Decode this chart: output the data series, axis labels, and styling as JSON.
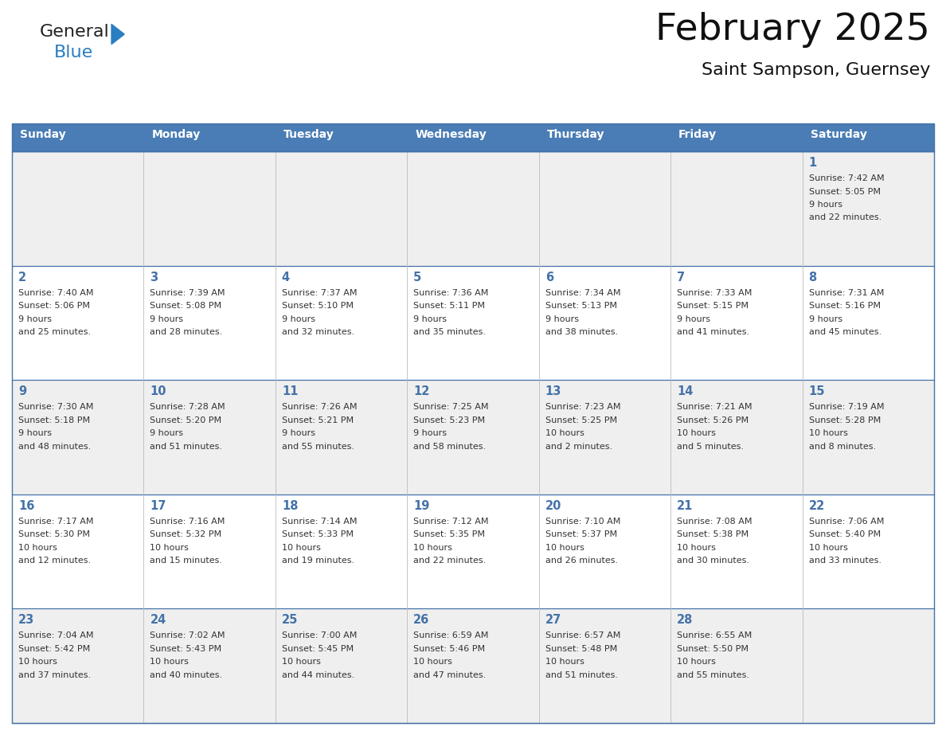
{
  "title": "February 2025",
  "subtitle": "Saint Sampson, Guernsey",
  "header_bg": "#4a7db5",
  "header_text_color": "#ffffff",
  "cell_bg_even": "#efefef",
  "cell_bg_odd": "#ffffff",
  "border_color": "#4472a8",
  "text_color": "#333333",
  "day_number_color": "#4472a8",
  "logo_general_color": "#222222",
  "logo_blue_color": "#2b7ec1",
  "day_headers": [
    "Sunday",
    "Monday",
    "Tuesday",
    "Wednesday",
    "Thursday",
    "Friday",
    "Saturday"
  ],
  "days": [
    {
      "day": 1,
      "col": 6,
      "row": 0,
      "sunrise": "7:42 AM",
      "sunset": "5:05 PM",
      "daylight": "9 hours and 22 minutes."
    },
    {
      "day": 2,
      "col": 0,
      "row": 1,
      "sunrise": "7:40 AM",
      "sunset": "5:06 PM",
      "daylight": "9 hours and 25 minutes."
    },
    {
      "day": 3,
      "col": 1,
      "row": 1,
      "sunrise": "7:39 AM",
      "sunset": "5:08 PM",
      "daylight": "9 hours and 28 minutes."
    },
    {
      "day": 4,
      "col": 2,
      "row": 1,
      "sunrise": "7:37 AM",
      "sunset": "5:10 PM",
      "daylight": "9 hours and 32 minutes."
    },
    {
      "day": 5,
      "col": 3,
      "row": 1,
      "sunrise": "7:36 AM",
      "sunset": "5:11 PM",
      "daylight": "9 hours and 35 minutes."
    },
    {
      "day": 6,
      "col": 4,
      "row": 1,
      "sunrise": "7:34 AM",
      "sunset": "5:13 PM",
      "daylight": "9 hours and 38 minutes."
    },
    {
      "day": 7,
      "col": 5,
      "row": 1,
      "sunrise": "7:33 AM",
      "sunset": "5:15 PM",
      "daylight": "9 hours and 41 minutes."
    },
    {
      "day": 8,
      "col": 6,
      "row": 1,
      "sunrise": "7:31 AM",
      "sunset": "5:16 PM",
      "daylight": "9 hours and 45 minutes."
    },
    {
      "day": 9,
      "col": 0,
      "row": 2,
      "sunrise": "7:30 AM",
      "sunset": "5:18 PM",
      "daylight": "9 hours and 48 minutes."
    },
    {
      "day": 10,
      "col": 1,
      "row": 2,
      "sunrise": "7:28 AM",
      "sunset": "5:20 PM",
      "daylight": "9 hours and 51 minutes."
    },
    {
      "day": 11,
      "col": 2,
      "row": 2,
      "sunrise": "7:26 AM",
      "sunset": "5:21 PM",
      "daylight": "9 hours and 55 minutes."
    },
    {
      "day": 12,
      "col": 3,
      "row": 2,
      "sunrise": "7:25 AM",
      "sunset": "5:23 PM",
      "daylight": "9 hours and 58 minutes."
    },
    {
      "day": 13,
      "col": 4,
      "row": 2,
      "sunrise": "7:23 AM",
      "sunset": "5:25 PM",
      "daylight": "10 hours and 2 minutes."
    },
    {
      "day": 14,
      "col": 5,
      "row": 2,
      "sunrise": "7:21 AM",
      "sunset": "5:26 PM",
      "daylight": "10 hours and 5 minutes."
    },
    {
      "day": 15,
      "col": 6,
      "row": 2,
      "sunrise": "7:19 AM",
      "sunset": "5:28 PM",
      "daylight": "10 hours and 8 minutes."
    },
    {
      "day": 16,
      "col": 0,
      "row": 3,
      "sunrise": "7:17 AM",
      "sunset": "5:30 PM",
      "daylight": "10 hours and 12 minutes."
    },
    {
      "day": 17,
      "col": 1,
      "row": 3,
      "sunrise": "7:16 AM",
      "sunset": "5:32 PM",
      "daylight": "10 hours and 15 minutes."
    },
    {
      "day": 18,
      "col": 2,
      "row": 3,
      "sunrise": "7:14 AM",
      "sunset": "5:33 PM",
      "daylight": "10 hours and 19 minutes."
    },
    {
      "day": 19,
      "col": 3,
      "row": 3,
      "sunrise": "7:12 AM",
      "sunset": "5:35 PM",
      "daylight": "10 hours and 22 minutes."
    },
    {
      "day": 20,
      "col": 4,
      "row": 3,
      "sunrise": "7:10 AM",
      "sunset": "5:37 PM",
      "daylight": "10 hours and 26 minutes."
    },
    {
      "day": 21,
      "col": 5,
      "row": 3,
      "sunrise": "7:08 AM",
      "sunset": "5:38 PM",
      "daylight": "10 hours and 30 minutes."
    },
    {
      "day": 22,
      "col": 6,
      "row": 3,
      "sunrise": "7:06 AM",
      "sunset": "5:40 PM",
      "daylight": "10 hours and 33 minutes."
    },
    {
      "day": 23,
      "col": 0,
      "row": 4,
      "sunrise": "7:04 AM",
      "sunset": "5:42 PM",
      "daylight": "10 hours and 37 minutes."
    },
    {
      "day": 24,
      "col": 1,
      "row": 4,
      "sunrise": "7:02 AM",
      "sunset": "5:43 PM",
      "daylight": "10 hours and 40 minutes."
    },
    {
      "day": 25,
      "col": 2,
      "row": 4,
      "sunrise": "7:00 AM",
      "sunset": "5:45 PM",
      "daylight": "10 hours and 44 minutes."
    },
    {
      "day": 26,
      "col": 3,
      "row": 4,
      "sunrise": "6:59 AM",
      "sunset": "5:46 PM",
      "daylight": "10 hours and 47 minutes."
    },
    {
      "day": 27,
      "col": 4,
      "row": 4,
      "sunrise": "6:57 AM",
      "sunset": "5:48 PM",
      "daylight": "10 hours and 51 minutes."
    },
    {
      "day": 28,
      "col": 5,
      "row": 4,
      "sunrise": "6:55 AM",
      "sunset": "5:50 PM",
      "daylight": "10 hours and 55 minutes."
    }
  ]
}
